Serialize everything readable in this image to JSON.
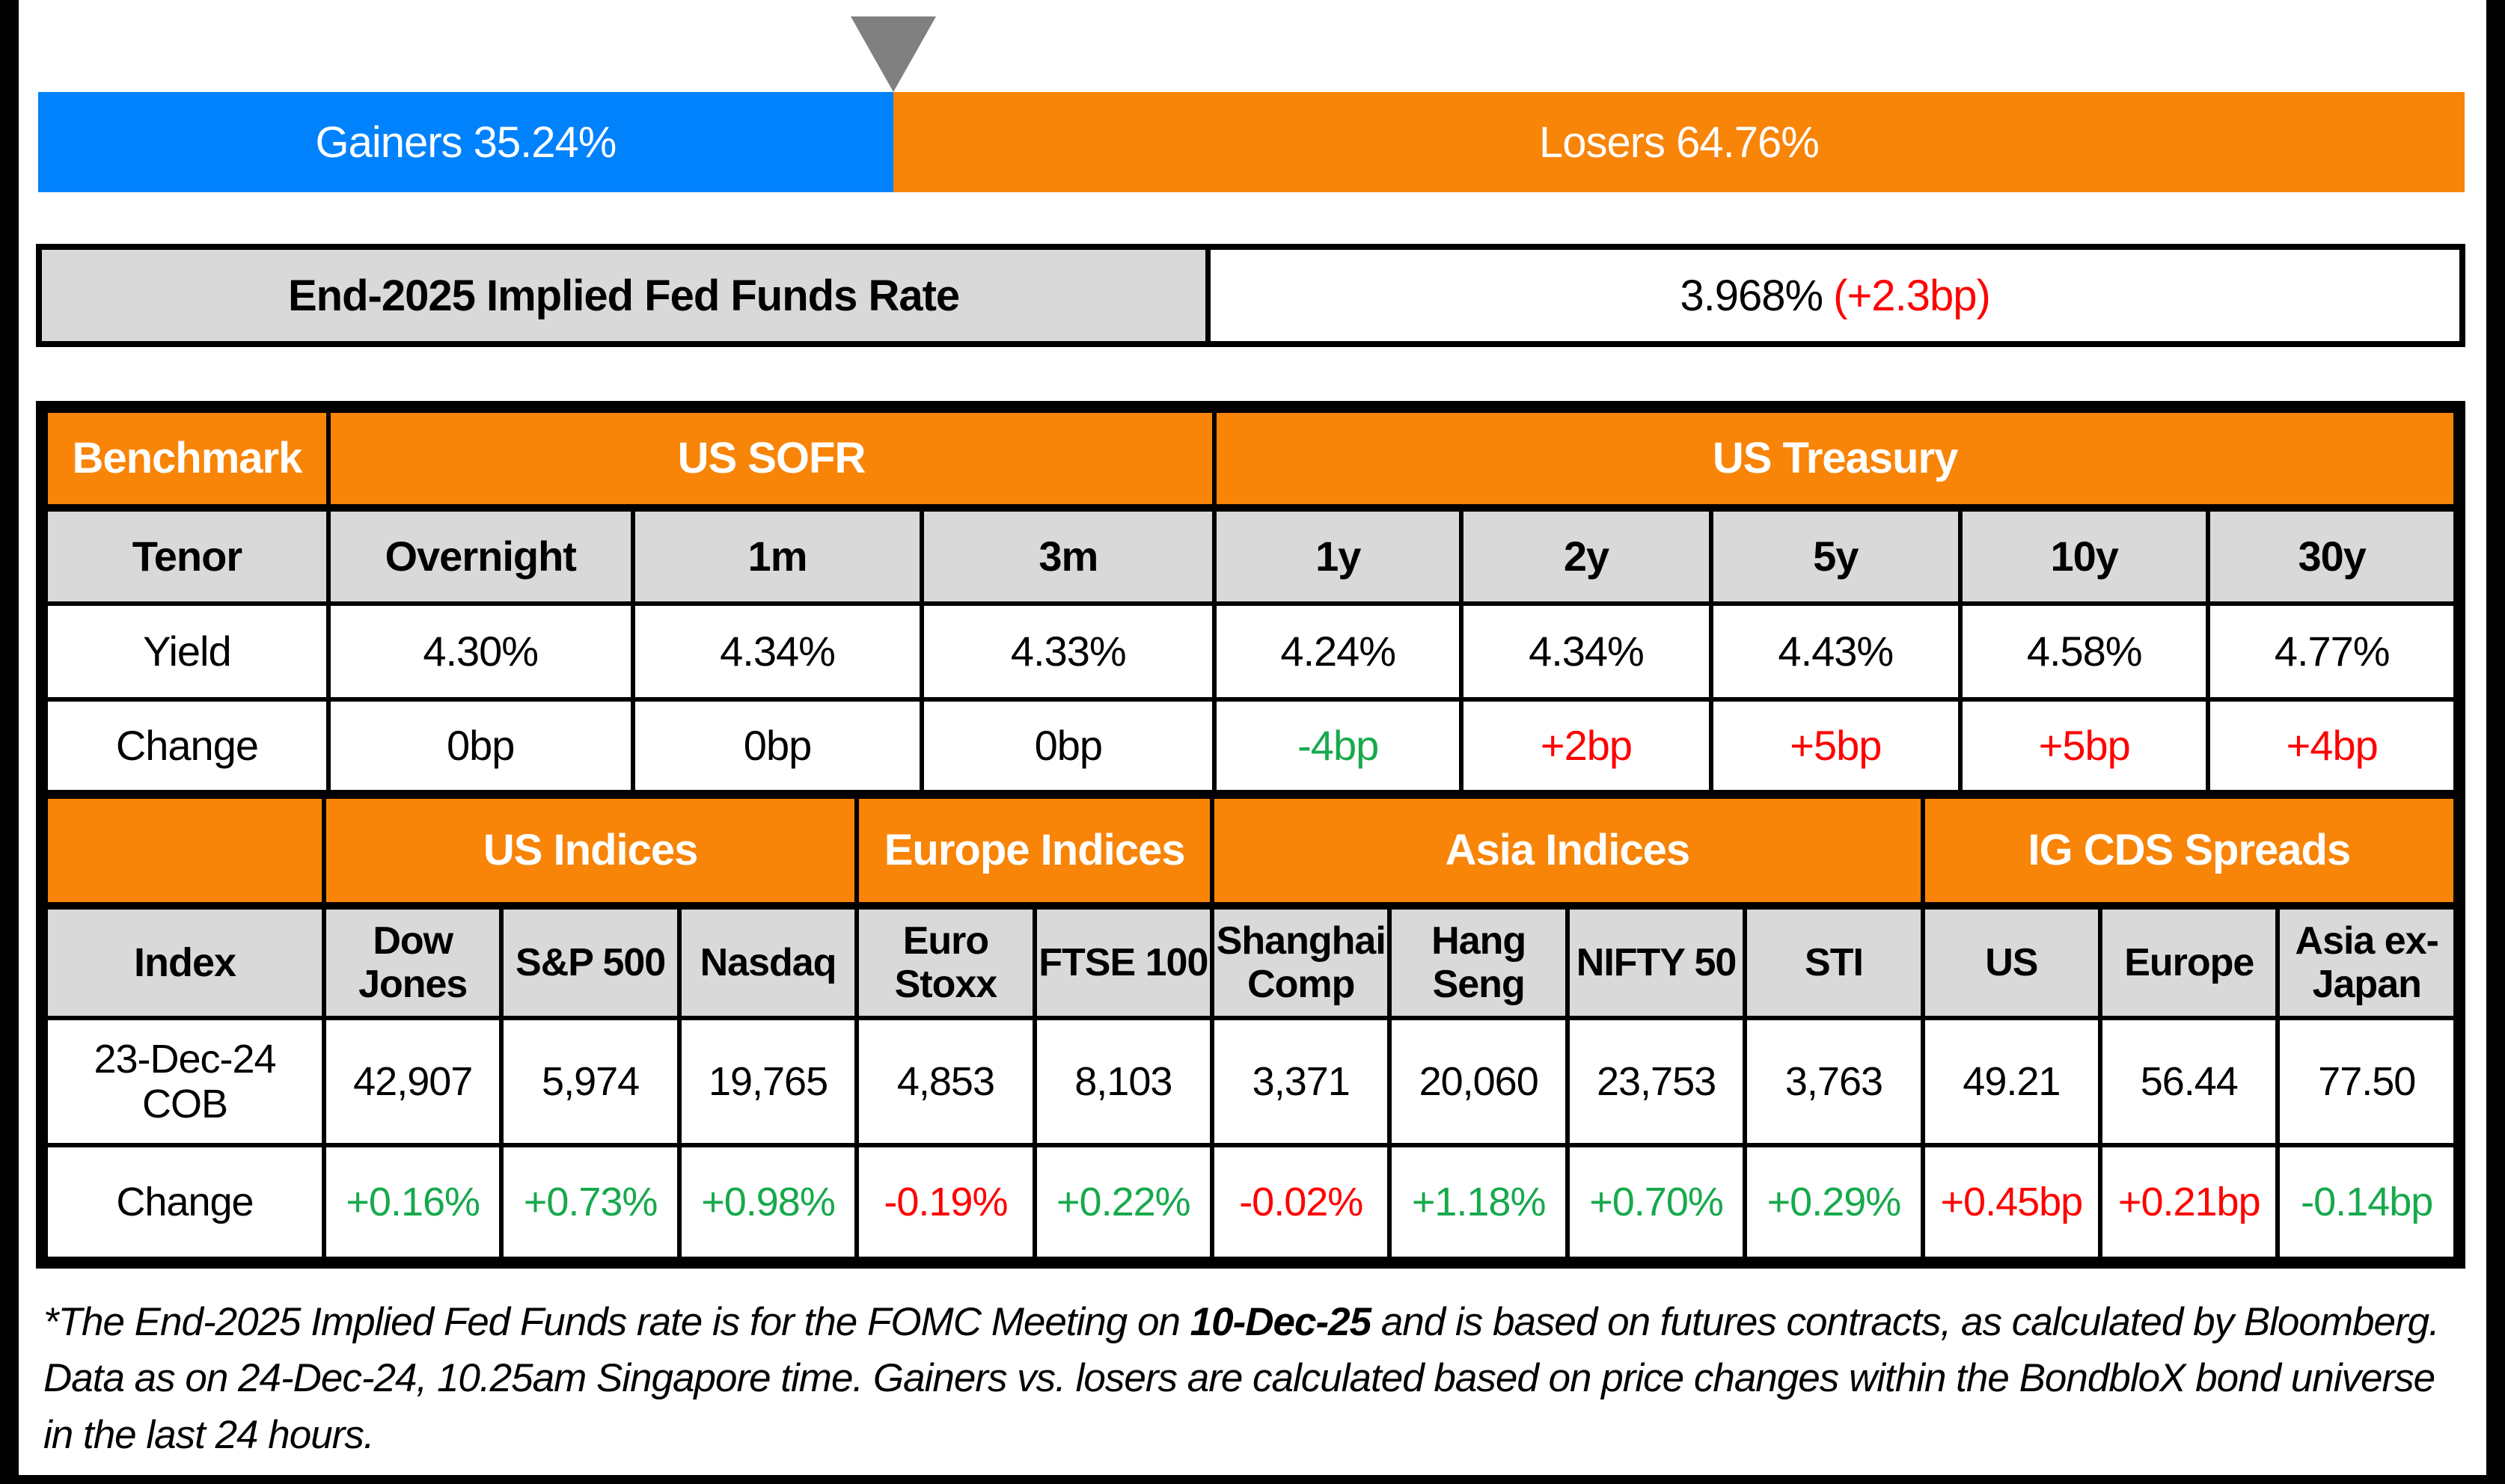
{
  "colors": {
    "gainers_blue": "#0082FC",
    "losers_orange": "#F88408",
    "header_orange": "#F88408",
    "gray_cell": "#D9D9D9",
    "positive_green": "#17A94C",
    "negative_red": "#FF0000",
    "marker_gray": "#808080"
  },
  "gainers_losers": {
    "gainers_label": "Gainers 35.24%",
    "gainers_pct": 35.24,
    "losers_label": "Losers 64.76%",
    "losers_pct": 64.76,
    "marker_icon": "down-triangle-marker"
  },
  "fed_funds": {
    "label": "End-2025 Implied Fed Funds Rate",
    "rate": "3.968%",
    "change": "(+2.3bp)"
  },
  "benchmark_table": {
    "corner": "Benchmark",
    "groups": [
      {
        "label": "US SOFR",
        "span": 3
      },
      {
        "label": "US Treasury",
        "span": 5
      }
    ],
    "tenor_label": "Tenor",
    "tenors": [
      "Overnight",
      "1m",
      "3m",
      "1y",
      "2y",
      "5y",
      "10y",
      "30y"
    ],
    "yield_label": "Yield",
    "yields": [
      "4.30%",
      "4.34%",
      "4.33%",
      "4.24%",
      "4.34%",
      "4.43%",
      "4.58%",
      "4.77%"
    ],
    "change_label": "Change",
    "changes": [
      {
        "text": "0bp",
        "color": "black"
      },
      {
        "text": "0bp",
        "color": "black"
      },
      {
        "text": "0bp",
        "color": "black"
      },
      {
        "text": "-4bp",
        "color": "green"
      },
      {
        "text": "+2bp",
        "color": "red"
      },
      {
        "text": "+5bp",
        "color": "red"
      },
      {
        "text": "+5bp",
        "color": "red"
      },
      {
        "text": "+4bp",
        "color": "red"
      }
    ]
  },
  "indices_table": {
    "groups": [
      {
        "label": "US Indices",
        "span": 3
      },
      {
        "label": "Europe Indices",
        "span": 2
      },
      {
        "label": "Asia Indices",
        "span": 4
      },
      {
        "label": "IG CDS Spreads",
        "span": 3
      }
    ],
    "index_label": "Index",
    "columns": [
      "Dow Jones",
      "S&P 500",
      "Nasdaq",
      "Euro Stoxx",
      "FTSE 100",
      "Shanghai Comp",
      "Hang Seng",
      "NIFTY 50",
      "STI",
      "US",
      "Europe",
      "Asia ex-Japan"
    ],
    "cob_label": "23-Dec-24 COB",
    "cob_values": [
      "42,907",
      "5,974",
      "19,765",
      "4,853",
      "8,103",
      "3,371",
      "20,060",
      "23,753",
      "3,763",
      "49.21",
      "56.44",
      "77.50"
    ],
    "change_label": "Change",
    "changes": [
      {
        "text": "+0.16%",
        "color": "green"
      },
      {
        "text": "+0.73%",
        "color": "green"
      },
      {
        "text": "+0.98%",
        "color": "green"
      },
      {
        "text": "-0.19%",
        "color": "red"
      },
      {
        "text": "+0.22%",
        "color": "green"
      },
      {
        "text": "-0.02%",
        "color": "red"
      },
      {
        "text": "+1.18%",
        "color": "green"
      },
      {
        "text": "+0.70%",
        "color": "green"
      },
      {
        "text": "+0.29%",
        "color": "green"
      },
      {
        "text": "+0.45bp",
        "color": "red"
      },
      {
        "text": "+0.21bp",
        "color": "red"
      },
      {
        "text": "-0.14bp",
        "color": "green"
      }
    ]
  },
  "footnote": {
    "part1": "*The End-2025 Implied Fed Funds rate is for the FOMC Meeting on ",
    "bold_date": "10-Dec-25",
    "part2": " and is based on futures contracts, as calculated by Bloomberg. Data as on 24-Dec-24, 10.25am Singapore time. Gainers vs. losers are calculated based on price changes within the BondbloX bond universe in the last 24 hours."
  },
  "chart_data": [
    {
      "type": "bar",
      "subtype": "horizontal-stacked-100pct",
      "title": "Gainers vs Losers share of BondbloX bond universe (last 24 hours)",
      "series": [
        {
          "name": "Gainers",
          "value": 35.24,
          "color": "#0082FC"
        },
        {
          "name": "Losers",
          "value": 64.76,
          "color": "#F88408"
        }
      ],
      "unit": "percent",
      "annotations": [
        "gray down-triangle marker at the 35.24% boundary"
      ]
    },
    {
      "type": "table",
      "title": "End-2025 Implied Fed Funds Rate",
      "rows": [
        [
          "End-2025 Implied Fed Funds Rate",
          "3.968% (+2.3bp)"
        ]
      ]
    },
    {
      "type": "table",
      "title": "Benchmark",
      "column_groups": {
        "US SOFR": [
          "Overnight",
          "1m",
          "3m"
        ],
        "US Treasury": [
          "1y",
          "2y",
          "5y",
          "10y",
          "30y"
        ]
      },
      "columns": [
        "Tenor",
        "Overnight",
        "1m",
        "3m",
        "1y",
        "2y",
        "5y",
        "10y",
        "30y"
      ],
      "rows": [
        [
          "Yield",
          "4.30%",
          "4.34%",
          "4.33%",
          "4.24%",
          "4.34%",
          "4.43%",
          "4.58%",
          "4.77%"
        ],
        [
          "Change",
          "0bp",
          "0bp",
          "0bp",
          "-4bp",
          "+2bp",
          "+5bp",
          "+5bp",
          "+4bp"
        ]
      ]
    },
    {
      "type": "table",
      "title": "Indices and IG CDS Spreads",
      "column_groups": {
        "US Indices": [
          "Dow Jones",
          "S&P 500",
          "Nasdaq"
        ],
        "Europe Indices": [
          "Euro Stoxx",
          "FTSE 100"
        ],
        "Asia Indices": [
          "Shanghai Comp",
          "Hang Seng",
          "NIFTY 50",
          "STI"
        ],
        "IG CDS Spreads": [
          "US",
          "Europe",
          "Asia ex-Japan"
        ]
      },
      "columns": [
        "Index",
        "Dow Jones",
        "S&P 500",
        "Nasdaq",
        "Euro Stoxx",
        "FTSE 100",
        "Shanghai Comp",
        "Hang Seng",
        "NIFTY 50",
        "STI",
        "US",
        "Europe",
        "Asia ex-Japan"
      ],
      "rows": [
        [
          "23-Dec-24 COB",
          "42,907",
          "5,974",
          "19,765",
          "4,853",
          "8,103",
          "3,371",
          "20,060",
          "23,753",
          "3,763",
          "49.21",
          "56.44",
          "77.50"
        ],
        [
          "Change",
          "+0.16%",
          "+0.73%",
          "+0.98%",
          "-0.19%",
          "+0.22%",
          "-0.02%",
          "+1.18%",
          "+0.70%",
          "+0.29%",
          "+0.45bp",
          "+0.21bp",
          "-0.14bp"
        ]
      ]
    }
  ]
}
